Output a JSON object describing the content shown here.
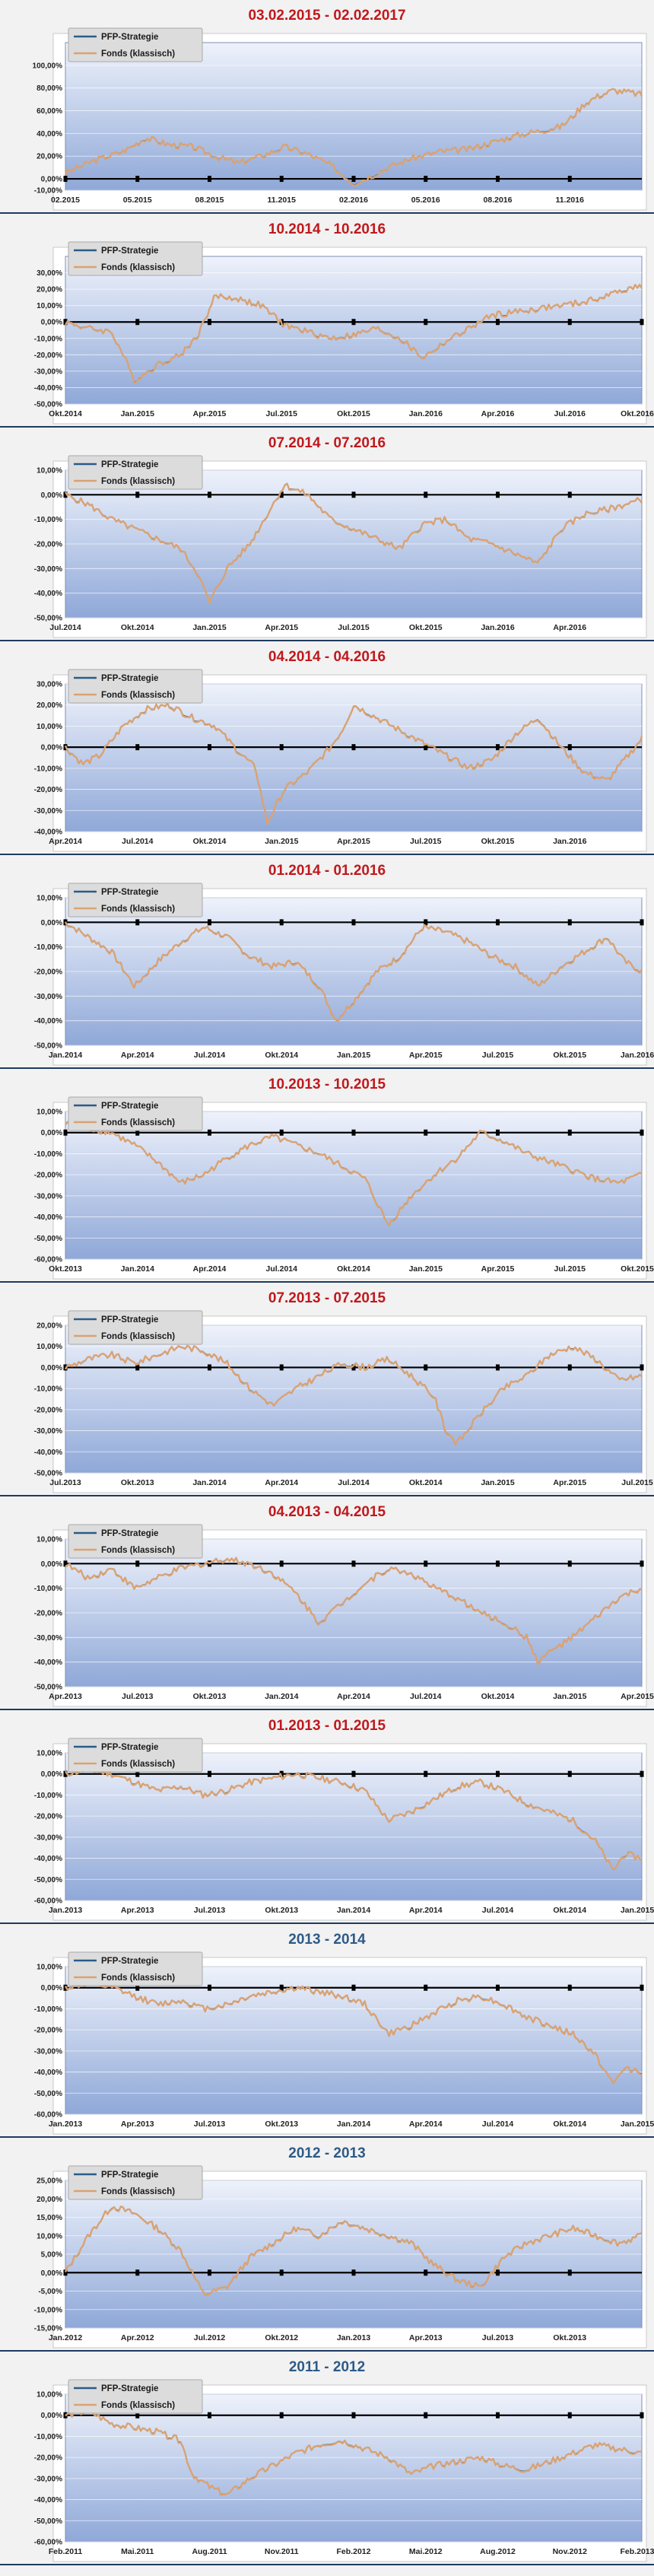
{
  "charts": [
    {
      "title": "03.02.2015 - 02.02.2017",
      "title_color": "#c0181c",
      "legend": [
        "PFP-Strategie",
        "Fonds (klassisch)"
      ],
      "ylim": [
        -10,
        120
      ],
      "yticks": [
        -10,
        0,
        20,
        40,
        60,
        80,
        100
      ],
      "ytick_labels": [
        "-10,00%",
        "0,00%",
        "20,00%",
        "40,00%",
        "60,00%",
        "80,00%",
        "100,00%"
      ],
      "xlabels": [
        "02.2015",
        "05.2015",
        "08.2015",
        "11.2015",
        "02.2016",
        "05.2016",
        "08.2016",
        "11.2016"
      ],
      "xlabel_pos": [
        0,
        0.125,
        0.25,
        0.375,
        0.5,
        0.625,
        0.75,
        0.875
      ],
      "x": [
        0,
        0.05,
        0.1,
        0.14,
        0.18,
        0.22,
        0.27,
        0.3,
        0.34,
        0.38,
        0.42,
        0.46,
        0.5,
        0.52,
        0.56,
        0.6,
        0.65,
        0.7,
        0.74,
        0.78,
        0.82,
        0.86,
        0.88,
        0.9,
        0.92,
        0.95,
        0.98,
        1
      ],
      "values": [
        5,
        16,
        24,
        36,
        30,
        28,
        18,
        14,
        20,
        28,
        22,
        12,
        -4,
        0,
        10,
        18,
        24,
        26,
        32,
        38,
        42,
        46,
        55,
        66,
        72,
        78,
        76,
        74
      ]
    },
    {
      "title": "10.2014 - 10.2016",
      "title_color": "#c0181c",
      "legend": [
        "PFP-Strategie",
        "Fonds (klassisch)"
      ],
      "ylim": [
        -50,
        40
      ],
      "yticks": [
        -50,
        -40,
        -30,
        -20,
        -10,
        0,
        10,
        20,
        30
      ],
      "ytick_labels": [
        "-50,00%",
        "-40,00%",
        "-30,00%",
        "-20,00%",
        "-10,00%",
        "0,00%",
        "10,00%",
        "20,00%",
        "30,00%"
      ],
      "xlabels": [
        "Okt.2014",
        "Jan.2015",
        "Apr.2015",
        "Jul.2015",
        "Okt.2015",
        "Jan.2016",
        "Apr.2016",
        "Jul.2016",
        "Okt.2016"
      ],
      "xlabel_pos": [
        0,
        0.125,
        0.25,
        0.375,
        0.5,
        0.625,
        0.75,
        0.875,
        1
      ],
      "x": [
        0,
        0.04,
        0.08,
        0.1,
        0.12,
        0.16,
        0.2,
        0.23,
        0.26,
        0.3,
        0.34,
        0.38,
        0.42,
        0.46,
        0.5,
        0.54,
        0.58,
        0.6,
        0.62,
        0.66,
        0.7,
        0.74,
        0.78,
        0.82,
        0.86,
        0.9,
        0.94,
        0.97,
        1
      ],
      "values": [
        0,
        -4,
        -6,
        -20,
        -36,
        -26,
        -20,
        -8,
        16,
        14,
        10,
        -2,
        -6,
        -10,
        -8,
        -4,
        -10,
        -16,
        -22,
        -12,
        -4,
        4,
        6,
        8,
        10,
        12,
        16,
        20,
        22
      ]
    },
    {
      "title": "07.2014 - 07.2016",
      "title_color": "#c0181c",
      "legend": [
        "PFP-Strategie",
        "Fonds (klassisch)"
      ],
      "ylim": [
        -50,
        10
      ],
      "yticks": [
        -50,
        -40,
        -30,
        -20,
        -10,
        0,
        10
      ],
      "ytick_labels": [
        "-50,00%",
        "-40,00%",
        "-30,00%",
        "-20,00%",
        "-10,00%",
        "0,00%",
        "10,00%"
      ],
      "xlabels": [
        "Jul.2014",
        "Okt.2014",
        "Jan.2015",
        "Apr.2015",
        "Jul.2015",
        "Okt.2015",
        "Jan.2016",
        "Apr.2016"
      ],
      "xlabel_pos": [
        0,
        0.125,
        0.25,
        0.375,
        0.5,
        0.625,
        0.75,
        0.875
      ],
      "x": [
        0,
        0.04,
        0.08,
        0.12,
        0.16,
        0.2,
        0.23,
        0.25,
        0.28,
        0.32,
        0.36,
        0.38,
        0.42,
        0.46,
        0.5,
        0.54,
        0.58,
        0.62,
        0.66,
        0.7,
        0.74,
        0.78,
        0.82,
        0.86,
        0.9,
        0.94,
        0.97,
        1
      ],
      "values": [
        0,
        -4,
        -10,
        -14,
        -18,
        -22,
        -32,
        -44,
        -30,
        -20,
        -4,
        4,
        0,
        -10,
        -14,
        -18,
        -22,
        -12,
        -10,
        -18,
        -20,
        -24,
        -28,
        -14,
        -8,
        -6,
        -4,
        -2
      ]
    },
    {
      "title": "04.2014 - 04.2016",
      "title_color": "#c0181c",
      "legend": [
        "PFP-Strategie",
        "Fonds (klassisch)"
      ],
      "ylim": [
        -40,
        30
      ],
      "yticks": [
        -40,
        -30,
        -20,
        -10,
        0,
        10,
        20,
        30
      ],
      "ytick_labels": [
        "-40,00%",
        "-30,00%",
        "-20,00%",
        "-10,00%",
        "0,00%",
        "10,00%",
        "20,00%",
        "30,00%"
      ],
      "xlabels": [
        "Apr.2014",
        "Jul.2014",
        "Okt.2014",
        "Jan.2015",
        "Apr.2015",
        "Jul.2015",
        "Okt.2015",
        "Jan.2016"
      ],
      "xlabel_pos": [
        0,
        0.125,
        0.25,
        0.375,
        0.5,
        0.625,
        0.75,
        0.875
      ],
      "x": [
        0,
        0.03,
        0.06,
        0.1,
        0.14,
        0.18,
        0.22,
        0.26,
        0.3,
        0.33,
        0.35,
        0.38,
        0.42,
        0.46,
        0.48,
        0.5,
        0.54,
        0.58,
        0.62,
        0.66,
        0.7,
        0.74,
        0.78,
        0.82,
        0.86,
        0.9,
        0.94,
        0.97,
        1
      ],
      "values": [
        0,
        -8,
        -4,
        10,
        18,
        20,
        14,
        10,
        -2,
        -10,
        -36,
        -20,
        -12,
        0,
        8,
        20,
        14,
        8,
        2,
        -4,
        -10,
        -6,
        6,
        14,
        0,
        -12,
        -16,
        -6,
        4
      ]
    },
    {
      "title": "01.2014 - 01.2016",
      "title_color": "#c0181c",
      "legend": [
        "PFP-Strategie",
        "Fonds (klassisch)"
      ],
      "ylim": [
        -50,
        10
      ],
      "yticks": [
        -50,
        -40,
        -30,
        -20,
        -10,
        0,
        10
      ],
      "ytick_labels": [
        "-50,00%",
        "-40,00%",
        "-30,00%",
        "-20,00%",
        "-10,00%",
        "0,00%",
        "10,00%"
      ],
      "xlabels": [
        "Jan.2014",
        "Apr.2014",
        "Jul.2014",
        "Okt.2014",
        "Jan.2015",
        "Apr.2015",
        "Jul.2015",
        "Okt.2015",
        "Jan.2016"
      ],
      "xlabel_pos": [
        0,
        0.125,
        0.25,
        0.375,
        0.5,
        0.625,
        0.75,
        0.875,
        1
      ],
      "x": [
        0,
        0.04,
        0.08,
        0.12,
        0.16,
        0.2,
        0.24,
        0.28,
        0.32,
        0.36,
        0.4,
        0.44,
        0.47,
        0.5,
        0.54,
        0.58,
        0.62,
        0.66,
        0.7,
        0.74,
        0.78,
        0.82,
        0.86,
        0.9,
        0.94,
        0.97,
        1
      ],
      "values": [
        0,
        -6,
        -12,
        -26,
        -16,
        -8,
        -2,
        -6,
        -14,
        -18,
        -16,
        -26,
        -40,
        -32,
        -20,
        -14,
        -2,
        -4,
        -8,
        -14,
        -18,
        -26,
        -18,
        -12,
        -6,
        -16,
        -20
      ]
    },
    {
      "title": "10.2013 - 10.2015",
      "title_color": "#c0181c",
      "legend": [
        "PFP-Strategie",
        "Fonds (klassisch)"
      ],
      "ylim": [
        -60,
        10
      ],
      "yticks": [
        -60,
        -50,
        -40,
        -30,
        -20,
        -10,
        0,
        10
      ],
      "ytick_labels": [
        "-60,00%",
        "-50,00%",
        "-40,00%",
        "-30,00%",
        "-20,00%",
        "-10,00%",
        "0,00%",
        "10,00%"
      ],
      "xlabels": [
        "Okt.2013",
        "Jan.2014",
        "Apr.2014",
        "Jul.2014",
        "Okt.2014",
        "Jan.2015",
        "Apr.2015",
        "Jul.2015",
        "Okt.2015"
      ],
      "xlabel_pos": [
        0,
        0.125,
        0.25,
        0.375,
        0.5,
        0.625,
        0.75,
        0.875,
        1
      ],
      "x": [
        0,
        0.04,
        0.08,
        0.12,
        0.16,
        0.2,
        0.24,
        0.28,
        0.32,
        0.36,
        0.4,
        0.44,
        0.48,
        0.52,
        0.56,
        0.6,
        0.64,
        0.68,
        0.72,
        0.76,
        0.8,
        0.84,
        0.88,
        0.92,
        0.96,
        1
      ],
      "values": [
        4,
        2,
        0,
        -6,
        -14,
        -24,
        -20,
        -12,
        -6,
        -2,
        -6,
        -10,
        -16,
        -22,
        -44,
        -30,
        -20,
        -12,
        0,
        -4,
        -10,
        -14,
        -18,
        -22,
        -24,
        -20
      ]
    },
    {
      "title": "07.2013 - 07.2015",
      "title_color": "#c0181c",
      "legend": [
        "PFP-Strategie",
        "Fonds (klassisch)"
      ],
      "ylim": [
        -50,
        20
      ],
      "yticks": [
        -50,
        -40,
        -30,
        -20,
        -10,
        0,
        10,
        20
      ],
      "ytick_labels": [
        "-50,00%",
        "-40,00%",
        "-30,00%",
        "-20,00%",
        "-10,00%",
        "0,00%",
        "10,00%",
        "20,00%"
      ],
      "xlabels": [
        "Jul.2013",
        "Okt.2013",
        "Jan.2014",
        "Apr.2014",
        "Jul.2014",
        "Okt.2014",
        "Jan.2015",
        "Apr.2015",
        "Jul.2015"
      ],
      "xlabel_pos": [
        0,
        0.125,
        0.25,
        0.375,
        0.5,
        0.625,
        0.75,
        0.875,
        1
      ],
      "x": [
        0,
        0.04,
        0.08,
        0.12,
        0.16,
        0.2,
        0.24,
        0.28,
        0.32,
        0.36,
        0.4,
        0.44,
        0.48,
        0.52,
        0.56,
        0.6,
        0.64,
        0.66,
        0.68,
        0.72,
        0.76,
        0.8,
        0.84,
        0.88,
        0.92,
        0.96,
        1
      ],
      "values": [
        0,
        4,
        6,
        2,
        6,
        10,
        8,
        2,
        -10,
        -18,
        -10,
        -4,
        2,
        0,
        4,
        -4,
        -14,
        -30,
        -36,
        -22,
        -10,
        -4,
        6,
        10,
        4,
        -6,
        -4
      ]
    },
    {
      "title": "04.2013 - 04.2015",
      "title_color": "#c0181c",
      "legend": [
        "PFP-Strategie",
        "Fonds (klassisch)"
      ],
      "ylim": [
        -50,
        10
      ],
      "yticks": [
        -50,
        -40,
        -30,
        -20,
        -10,
        0,
        10
      ],
      "ytick_labels": [
        "-50,00%",
        "-40,00%",
        "-30,00%",
        "-20,00%",
        "-10,00%",
        "0,00%",
        "10,00%"
      ],
      "xlabels": [
        "Apr.2013",
        "Jul.2013",
        "Okt.2013",
        "Jan.2014",
        "Apr.2014",
        "Jul.2014",
        "Okt.2014",
        "Jan.2015",
        "Apr.2015"
      ],
      "xlabel_pos": [
        0,
        0.125,
        0.25,
        0.375,
        0.5,
        0.625,
        0.75,
        0.875,
        1
      ],
      "x": [
        0,
        0.04,
        0.08,
        0.12,
        0.16,
        0.2,
        0.24,
        0.28,
        0.32,
        0.36,
        0.4,
        0.44,
        0.48,
        0.52,
        0.56,
        0.6,
        0.64,
        0.68,
        0.72,
        0.76,
        0.8,
        0.82,
        0.84,
        0.88,
        0.92,
        0.96,
        1
      ],
      "values": [
        0,
        -6,
        -2,
        -10,
        -6,
        -2,
        0,
        2,
        0,
        -4,
        -12,
        -24,
        -16,
        -8,
        -2,
        -4,
        -10,
        -14,
        -20,
        -24,
        -30,
        -40,
        -36,
        -30,
        -22,
        -14,
        -10
      ]
    },
    {
      "title": "01.2013 - 01.2015",
      "title_color": "#c0181c",
      "legend": [
        "PFP-Strategie",
        "Fonds (klassisch)"
      ],
      "ylim": [
        -60,
        10
      ],
      "yticks": [
        -60,
        -50,
        -40,
        -30,
        -20,
        -10,
        0,
        10
      ],
      "ytick_labels": [
        "-60,00%",
        "-50,00%",
        "-40,00%",
        "-30,00%",
        "-20,00%",
        "-10,00%",
        "0,00%",
        "10,00%"
      ],
      "xlabels": [
        "Jan.2013",
        "Apr.2013",
        "Jul.2013",
        "Okt.2013",
        "Jan.2014",
        "Apr.2014",
        "Jul.2014",
        "Okt.2014",
        "Jan.2015"
      ],
      "xlabel_pos": [
        0,
        0.125,
        0.25,
        0.375,
        0.5,
        0.625,
        0.75,
        0.875,
        1
      ],
      "x": [
        0,
        0.04,
        0.08,
        0.12,
        0.16,
        0.2,
        0.24,
        0.28,
        0.32,
        0.36,
        0.4,
        0.44,
        0.48,
        0.52,
        0.56,
        0.6,
        0.64,
        0.68,
        0.72,
        0.76,
        0.8,
        0.84,
        0.88,
        0.92,
        0.95,
        0.97,
        1
      ],
      "values": [
        0,
        2,
        0,
        -4,
        -8,
        -6,
        -10,
        -8,
        -4,
        -2,
        0,
        -2,
        -4,
        -8,
        -22,
        -18,
        -12,
        -6,
        -4,
        -8,
        -14,
        -18,
        -22,
        -32,
        -46,
        -38,
        -40
      ]
    },
    {
      "title": "2013 - 2014",
      "title_color": "#2e5a87",
      "legend": [
        "PFP-Strategie",
        "Fonds (klassisch)"
      ],
      "ylim": [
        -60,
        10
      ],
      "yticks": [
        -60,
        -50,
        -40,
        -30,
        -20,
        -10,
        0,
        10
      ],
      "ytick_labels": [
        "-60,00%",
        "-50,00%",
        "-40,00%",
        "-30,00%",
        "-20,00%",
        "-10,00%",
        "0,00%",
        "10,00%"
      ],
      "xlabels": [
        "Jan.2013",
        "Apr.2013",
        "Jul.2013",
        "Okt.2013",
        "Jan.2014",
        "Apr.2014",
        "Jul.2014",
        "Okt.2014",
        "Jan.2015"
      ],
      "xlabel_pos": [
        0,
        0.125,
        0.25,
        0.375,
        0.5,
        0.625,
        0.75,
        0.875,
        1
      ],
      "x": [
        0,
        0.04,
        0.08,
        0.12,
        0.16,
        0.2,
        0.24,
        0.28,
        0.32,
        0.36,
        0.4,
        0.44,
        0.48,
        0.52,
        0.56,
        0.6,
        0.64,
        0.68,
        0.72,
        0.76,
        0.8,
        0.84,
        0.88,
        0.92,
        0.95,
        0.97,
        1
      ],
      "values": [
        0,
        2,
        0,
        -4,
        -8,
        -6,
        -10,
        -8,
        -4,
        -2,
        0,
        -2,
        -4,
        -8,
        -22,
        -18,
        -12,
        -6,
        -4,
        -8,
        -14,
        -18,
        -22,
        -32,
        -46,
        -38,
        -40
      ]
    },
    {
      "title": "2012 - 2013",
      "title_color": "#2e5a87",
      "legend": [
        "PFP-Strategie",
        "Fonds (klassisch)"
      ],
      "ylim": [
        -15,
        25
      ],
      "yticks": [
        -15,
        -10,
        -5,
        0,
        5,
        10,
        15,
        20,
        25
      ],
      "ytick_labels": [
        "-15,00%",
        "-10,00%",
        "-5,00%",
        "0,00%",
        "5,00%",
        "10,00%",
        "15,00%",
        "20,00%",
        "25,00%"
      ],
      "xlabels": [
        "Jan.2012",
        "Apr.2012",
        "Jul.2012",
        "Okt.2012",
        "Jan.2013",
        "Apr.2013",
        "Jul.2013",
        "Okt.2013"
      ],
      "xlabel_pos": [
        0,
        0.125,
        0.25,
        0.375,
        0.5,
        0.625,
        0.75,
        0.875
      ],
      "x": [
        0,
        0.04,
        0.08,
        0.12,
        0.16,
        0.2,
        0.24,
        0.28,
        0.32,
        0.36,
        0.4,
        0.44,
        0.48,
        0.52,
        0.56,
        0.6,
        0.64,
        0.68,
        0.72,
        0.76,
        0.8,
        0.84,
        0.88,
        0.92,
        0.96,
        1
      ],
      "values": [
        0,
        10,
        18,
        16,
        12,
        6,
        -6,
        -4,
        4,
        8,
        12,
        10,
        14,
        12,
        10,
        8,
        2,
        -2,
        -4,
        4,
        8,
        10,
        12,
        10,
        8,
        10
      ]
    },
    {
      "title": "2011 - 2012",
      "title_color": "#2e5a87",
      "legend": [
        "PFP-Strategie",
        "Fonds (klassisch)"
      ],
      "ylim": [
        -60,
        10
      ],
      "yticks": [
        -60,
        -50,
        -40,
        -30,
        -20,
        -10,
        0,
        10
      ],
      "ytick_labels": [
        "-60,00%",
        "-50,00%",
        "-40,00%",
        "-30,00%",
        "-20,00%",
        "-10,00%",
        "0,00%",
        "10,00%"
      ],
      "xlabels": [
        "Feb.2011",
        "Mai.2011",
        "Aug.2011",
        "Nov.2011",
        "Feb.2012",
        "Mai.2012",
        "Aug.2012",
        "Nov.2012",
        "Feb.2013"
      ],
      "xlabel_pos": [
        0,
        0.125,
        0.25,
        0.375,
        0.5,
        0.625,
        0.75,
        0.875,
        1
      ],
      "x": [
        0,
        0.04,
        0.08,
        0.12,
        0.16,
        0.2,
        0.22,
        0.25,
        0.28,
        0.32,
        0.36,
        0.4,
        0.44,
        0.48,
        0.52,
        0.56,
        0.6,
        0.64,
        0.68,
        0.72,
        0.76,
        0.8,
        0.84,
        0.88,
        0.92,
        0.96,
        1
      ],
      "values": [
        0,
        2,
        -4,
        -6,
        -8,
        -12,
        -28,
        -34,
        -38,
        -30,
        -24,
        -18,
        -14,
        -12,
        -16,
        -20,
        -28,
        -24,
        -22,
        -20,
        -24,
        -26,
        -22,
        -18,
        -14,
        -16,
        -18
      ]
    }
  ],
  "colors": {
    "title_red": "#c0181c",
    "title_blue": "#2e5a87",
    "strategy_line": "#2a5c8a",
    "fund_line": "#d9a273",
    "plot_bg_top": "#eef2fb",
    "plot_bg_bottom": "#8fa8d8"
  }
}
